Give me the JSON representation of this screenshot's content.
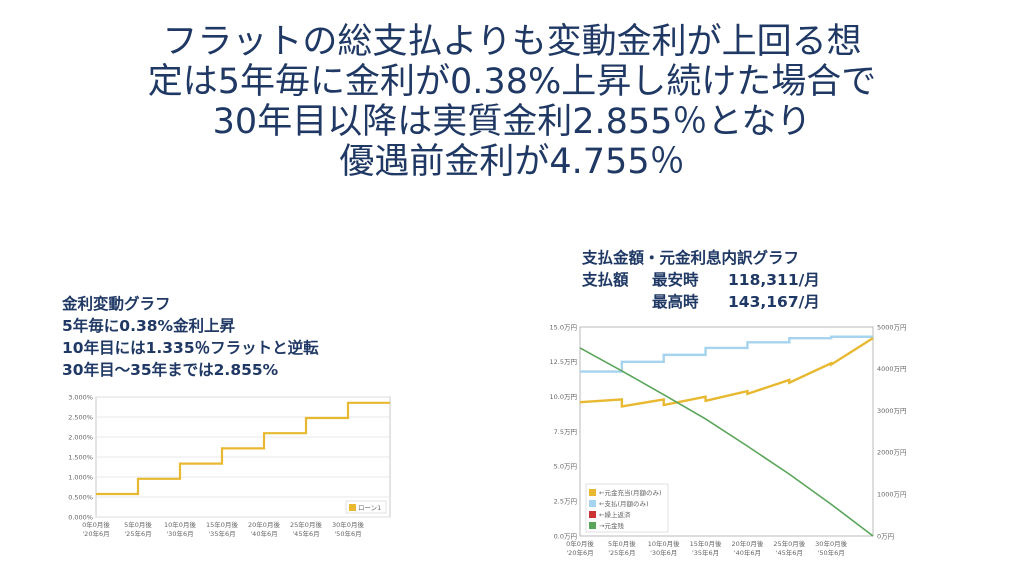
{
  "title_lines": [
    "フラットの総支払よりも変動金利が上回る想",
    "定は5年毎に金利が0.38%上昇し続けた場合で",
    "30年目以降は実質金利2.855％となり",
    "優遇前金利が4.755％"
  ],
  "left_caption": [
    "金利変動グラフ",
    "5年毎に0.38%金利上昇",
    "10年目には1.335％フラットと逆転",
    "30年目～35年までは2.855%"
  ],
  "right_caption": {
    "line1": "支払金額・元金利息内訳グラフ",
    "row2": {
      "label": "支払額",
      "sub": "最安時",
      "value": "118,311/月"
    },
    "row3": {
      "label": "",
      "sub": "最高時",
      "value": "143,167/月"
    }
  },
  "colors": {
    "gold": "#e8b930",
    "lightblue": "#a6d3ee",
    "red": "#cc3333",
    "green": "#5aa55a",
    "title": "#1f3864"
  },
  "chart_data": [
    {
      "type": "line",
      "title": "",
      "xlabel": "",
      "ylabel": "",
      "ylim": [
        0,
        3.0
      ],
      "y_ticks": [
        "3.000%",
        "2.500%",
        "2.000%",
        "1.500%",
        "1.000%",
        "0.500%",
        "0.000%"
      ],
      "x_ticks": [
        [
          "0年0月後",
          "'20年6月"
        ],
        [
          "5年0月後",
          "'25年6月"
        ],
        [
          "10年0月後",
          "'30年6月"
        ],
        [
          "15年0月後",
          "'35年6月"
        ],
        [
          "20年0月後",
          "'40年6月"
        ],
        [
          "25年0月後",
          "'45年6月"
        ],
        [
          "30年0月後",
          "'50年6月"
        ]
      ],
      "x_range_years": [
        0,
        35
      ],
      "series": [
        {
          "name": "ローン1",
          "color": "#e8b930",
          "step": true,
          "x_years": [
            0,
            5,
            10,
            15,
            20,
            25,
            30,
            35
          ],
          "y_percent": [
            0.575,
            0.955,
            1.335,
            1.715,
            2.095,
            2.475,
            2.855,
            2.855
          ]
        }
      ],
      "legend_position": "bottom-right",
      "grid": true
    },
    {
      "type": "line",
      "title": "",
      "y_left_ticks": [
        "15.0万円",
        "12.5万円",
        "10.0万円",
        "7.5万円",
        "5.0万円",
        "2.5万円",
        "0.0万円"
      ],
      "y_right_ticks": [
        "5000万円",
        "4000万円",
        "3000万円",
        "2000万円",
        "1000万円",
        "0万円"
      ],
      "ylim_left_man_yen": [
        0,
        15
      ],
      "ylim_right_man_yen": [
        0,
        5000
      ],
      "x_ticks": [
        [
          "0年0月後",
          "'20年6月"
        ],
        [
          "5年0月後",
          "'25年6月"
        ],
        [
          "10年0月後",
          "'30年6月"
        ],
        [
          "15年0月後",
          "'35年6月"
        ],
        [
          "20年0月後",
          "'40年6月"
        ],
        [
          "25年0月後",
          "'45年6月"
        ],
        [
          "30年0月後",
          "'50年6月"
        ]
      ],
      "x_range_years": [
        0,
        35
      ],
      "series": [
        {
          "name": "←元金充当(月額のみ)",
          "color": "#e8b930",
          "axis": "left",
          "segments": [
            {
              "x0": 0,
              "x1": 5,
              "y0": 9.6,
              "y1": 9.8
            },
            {
              "x0": 5,
              "x1": 10,
              "y0": 9.3,
              "y1": 9.8
            },
            {
              "x0": 10,
              "x1": 15,
              "y0": 9.4,
              "y1": 10.0
            },
            {
              "x0": 15,
              "x1": 20,
              "y0": 9.7,
              "y1": 10.4
            },
            {
              "x0": 20,
              "x1": 25,
              "y0": 10.2,
              "y1": 11.2
            },
            {
              "x0": 25,
              "x1": 30,
              "y0": 11.0,
              "y1": 12.4
            },
            {
              "x0": 30,
              "x1": 35,
              "y0": 12.3,
              "y1": 14.2
            }
          ]
        },
        {
          "name": "←支払(月額のみ)",
          "color": "#a6d3ee",
          "axis": "left",
          "step": true,
          "x_years": [
            0,
            5,
            10,
            15,
            20,
            25,
            30,
            35
          ],
          "y_man_yen": [
            11.8,
            12.5,
            13.0,
            13.5,
            13.9,
            14.2,
            14.3,
            14.3
          ]
        },
        {
          "name": "←繰上返済",
          "color": "#cc3333",
          "axis": "left",
          "values": []
        },
        {
          "name": "→元金残",
          "color": "#5aa55a",
          "axis": "right",
          "x_years": [
            0,
            5,
            10,
            15,
            20,
            25,
            30,
            35
          ],
          "y_man_yen": [
            4500,
            3950,
            3380,
            2800,
            2150,
            1480,
            760,
            0
          ]
        }
      ],
      "legend_position": "bottom-left",
      "grid": false
    }
  ]
}
